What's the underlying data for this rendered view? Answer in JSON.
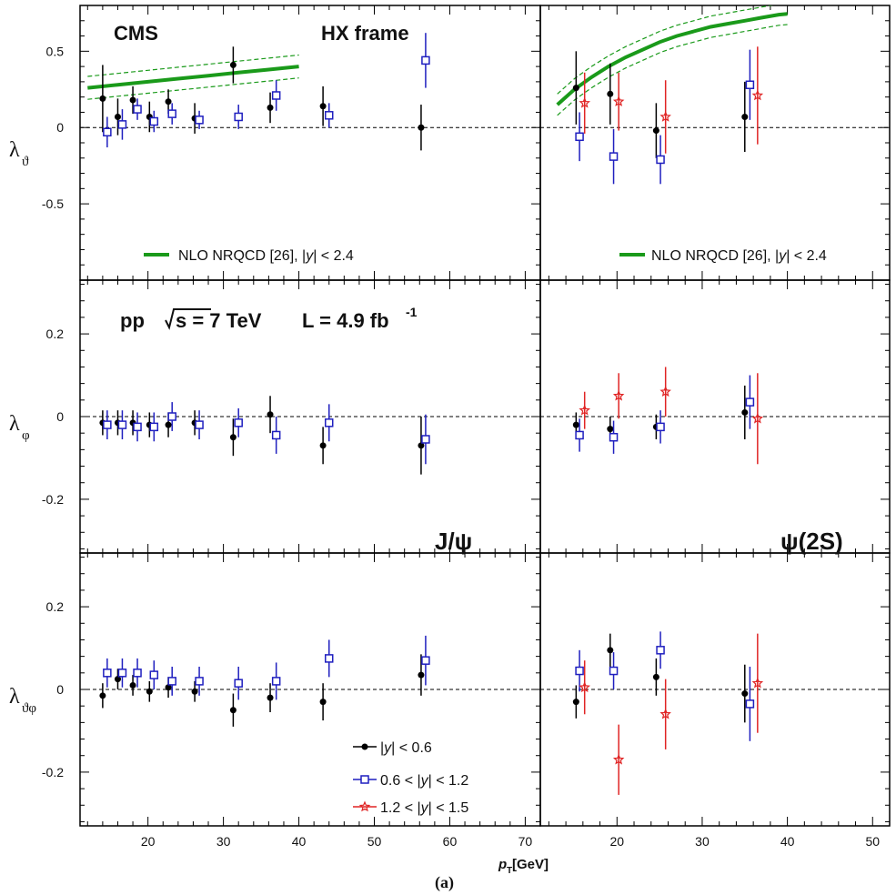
{
  "labels": {
    "cms": "CMS",
    "frame": "HX frame",
    "pp": "pp",
    "sqrt_s": "s = 7 TeV",
    "lumi": "L = 4.9 fb",
    "lumi_exp": "-1",
    "jpsi": "J/ψ",
    "psi2s": "ψ(2S)",
    "xlabel_main": "p",
    "xlabel_sub": "T",
    "xlabel_unit": " [GeV]",
    "caption": "(a)",
    "nlo_prefix": "NLO NRQCD [26], |",
    "nlo_y": "y",
    "nlo_suffix": "| < 2.4",
    "ylabels": [
      {
        "main": "λ",
        "sub": "ϑ"
      },
      {
        "main": "λ",
        "sub": "φ"
      },
      {
        "main": "λ",
        "sub": "ϑφ"
      }
    ],
    "legend": [
      {
        "pre": "|",
        "y": "y",
        "post": "| < 0.6"
      },
      {
        "pre": "0.6 < |",
        "y": "y",
        "post": "| < 1.2"
      },
      {
        "pre": "1.2 < |",
        "y": "y",
        "post": "| < 1.5"
      }
    ]
  },
  "colors": {
    "black": "#000000",
    "blue": "#1f1fbf",
    "red": "#e02424",
    "green": "#1a9a1a"
  },
  "chart_data": {
    "type": "scatter",
    "rows": [
      {
        "name": "lambda_theta",
        "ylim": [
          -1,
          0.8
        ],
        "yticks": [
          -0.5,
          0,
          0.5
        ],
        "ytick_labels": [
          "-0.5",
          "0",
          "0.5"
        ]
      },
      {
        "name": "lambda_phi",
        "ylim": [
          -0.33,
          0.33
        ],
        "yticks": [
          -0.2,
          0,
          0.2
        ],
        "ytick_labels": [
          "-0.2",
          "0",
          "0.2"
        ]
      },
      {
        "name": "lambda_thetaphi",
        "ylim": [
          -0.33,
          0.33
        ],
        "yticks": [
          -0.2,
          0,
          0.2
        ],
        "ytick_labels": [
          "-0.2",
          "0",
          "0.2"
        ]
      }
    ],
    "columns": [
      {
        "name": "jpsi",
        "xlim": [
          11,
          72
        ],
        "xticks": [
          20,
          30,
          40,
          50,
          60,
          70
        ],
        "xtick_labels": [
          "20",
          "30",
          "40",
          "50",
          "60",
          "70"
        ]
      },
      {
        "name": "psi2s",
        "xlim": [
          11,
          52
        ],
        "xticks": [
          20,
          30,
          40,
          50
        ],
        "xtick_labels": [
          "20",
          "30",
          "40",
          "50"
        ]
      }
    ],
    "series": [
      {
        "name": "|y| < 0.6",
        "marker": "circle",
        "color": "black",
        "jpsi": {
          "x": [
            14.0,
            16.0,
            18.0,
            20.2,
            22.7,
            26.2,
            31.3,
            36.2,
            43.2,
            56.2
          ],
          "lambda_theta": [
            [
              0.19,
              0.22
            ],
            [
              0.07,
              0.12
            ],
            [
              0.18,
              0.09
            ],
            [
              0.07,
              0.1
            ],
            [
              0.17,
              0.08
            ],
            [
              0.06,
              0.1
            ],
            [
              0.41,
              0.12
            ],
            [
              0.13,
              0.1
            ],
            [
              0.14,
              0.13
            ],
            [
              0.0,
              0.15
            ]
          ],
          "lambda_phi": [
            [
              -0.015,
              0.03
            ],
            [
              -0.015,
              0.03
            ],
            [
              -0.015,
              0.03
            ],
            [
              -0.02,
              0.03
            ],
            [
              -0.02,
              0.03
            ],
            [
              -0.015,
              0.03
            ],
            [
              -0.05,
              0.045
            ],
            [
              0.005,
              0.045
            ],
            [
              -0.07,
              0.045
            ],
            [
              -0.07,
              0.07
            ]
          ],
          "lambda_thetaphi": [
            [
              -0.015,
              0.03
            ],
            [
              0.025,
              0.025
            ],
            [
              0.01,
              0.025
            ],
            [
              -0.005,
              0.025
            ],
            [
              0.005,
              0.025
            ],
            [
              -0.005,
              0.025
            ],
            [
              -0.05,
              0.04
            ],
            [
              -0.02,
              0.035
            ],
            [
              -0.03,
              0.045
            ],
            [
              0.035,
              0.05
            ]
          ]
        },
        "psi2s": {
          "x": [
            15.2,
            19.2,
            24.6,
            35.0
          ],
          "lambda_theta": [
            [
              0.26,
              0.24
            ],
            [
              0.22,
              0.2
            ],
            [
              -0.02,
              0.18
            ],
            [
              0.07,
              0.23
            ]
          ],
          "lambda_phi": [
            [
              -0.02,
              0.03
            ],
            [
              -0.03,
              0.03
            ],
            [
              -0.025,
              0.03
            ],
            [
              0.01,
              0.065
            ]
          ],
          "lambda_thetaphi": [
            [
              -0.03,
              0.04
            ],
            [
              0.095,
              0.04
            ],
            [
              0.03,
              0.045
            ],
            [
              -0.01,
              0.07
            ]
          ]
        }
      },
      {
        "name": "0.6 < |y| < 1.2",
        "marker": "open-square",
        "color": "blue",
        "jpsi": {
          "x": [
            14.6,
            16.6,
            18.6,
            20.8,
            23.2,
            26.8,
            32.0,
            37.0,
            44.0,
            56.8
          ],
          "lambda_theta": [
            [
              -0.03,
              0.1
            ],
            [
              0.02,
              0.1
            ],
            [
              0.12,
              0.07
            ],
            [
              0.04,
              0.07
            ],
            [
              0.09,
              0.07
            ],
            [
              0.05,
              0.06
            ],
            [
              0.07,
              0.08
            ],
            [
              0.21,
              0.1
            ],
            [
              0.08,
              0.08
            ],
            [
              0.44,
              0.18
            ]
          ],
          "lambda_phi": [
            [
              -0.02,
              0.035
            ],
            [
              -0.02,
              0.035
            ],
            [
              -0.025,
              0.035
            ],
            [
              -0.025,
              0.035
            ],
            [
              0.0,
              0.035
            ],
            [
              -0.02,
              0.035
            ],
            [
              -0.015,
              0.035
            ],
            [
              -0.045,
              0.045
            ],
            [
              -0.015,
              0.045
            ],
            [
              -0.055,
              0.06
            ]
          ],
          "lambda_thetaphi": [
            [
              0.04,
              0.035
            ],
            [
              0.04,
              0.035
            ],
            [
              0.04,
              0.035
            ],
            [
              0.035,
              0.035
            ],
            [
              0.02,
              0.035
            ],
            [
              0.02,
              0.035
            ],
            [
              0.015,
              0.04
            ],
            [
              0.02,
              0.045
            ],
            [
              0.075,
              0.045
            ],
            [
              0.07,
              0.06
            ]
          ]
        },
        "psi2s": {
          "x": [
            15.6,
            19.6,
            25.1,
            35.6
          ],
          "lambda_theta": [
            [
              -0.06,
              0.16
            ],
            [
              -0.19,
              0.18
            ],
            [
              -0.21,
              0.16
            ],
            [
              0.28,
              0.23
            ]
          ],
          "lambda_phi": [
            [
              -0.045,
              0.04
            ],
            [
              -0.05,
              0.04
            ],
            [
              -0.025,
              0.04
            ],
            [
              0.035,
              0.065
            ]
          ],
          "lambda_thetaphi": [
            [
              0.045,
              0.05
            ],
            [
              0.045,
              0.045
            ],
            [
              0.095,
              0.045
            ],
            [
              -0.035,
              0.09
            ]
          ]
        }
      },
      {
        "name": "1.2 < |y| < 1.5",
        "marker": "star",
        "color": "red",
        "psi2s": {
          "x": [
            16.2,
            20.2,
            25.7,
            36.5
          ],
          "lambda_theta": [
            [
              0.16,
              0.2
            ],
            [
              0.17,
              0.19
            ],
            [
              0.07,
              0.24
            ],
            [
              0.21,
              0.32
            ]
          ],
          "lambda_phi": [
            [
              0.015,
              0.045
            ],
            [
              0.05,
              0.055
            ],
            [
              0.06,
              0.06
            ],
            [
              -0.005,
              0.11
            ]
          ],
          "lambda_thetaphi": [
            [
              0.005,
              0.065
            ],
            [
              -0.17,
              0.085
            ],
            [
              -0.06,
              0.085
            ],
            [
              0.015,
              0.12
            ]
          ]
        }
      }
    ],
    "theory": {
      "name": "NLO NRQCD [26], |y| < 2.4",
      "jpsi": {
        "x": [
          12,
          16,
          20,
          24,
          28,
          32,
          36,
          40
        ],
        "center": [
          0.26,
          0.28,
          0.3,
          0.32,
          0.34,
          0.36,
          0.38,
          0.4
        ],
        "halfwidth": 0.075
      },
      "psi2s": {
        "x": [
          13,
          15,
          17,
          19,
          21,
          23,
          25,
          27,
          29,
          31,
          33,
          35,
          37,
          39,
          40
        ],
        "center": [
          0.15,
          0.25,
          0.33,
          0.4,
          0.46,
          0.51,
          0.56,
          0.6,
          0.63,
          0.66,
          0.68,
          0.7,
          0.72,
          0.74,
          0.745
        ],
        "halfwidth": 0.07
      }
    },
    "legend_position": "bottom-left of lower-left panel"
  }
}
